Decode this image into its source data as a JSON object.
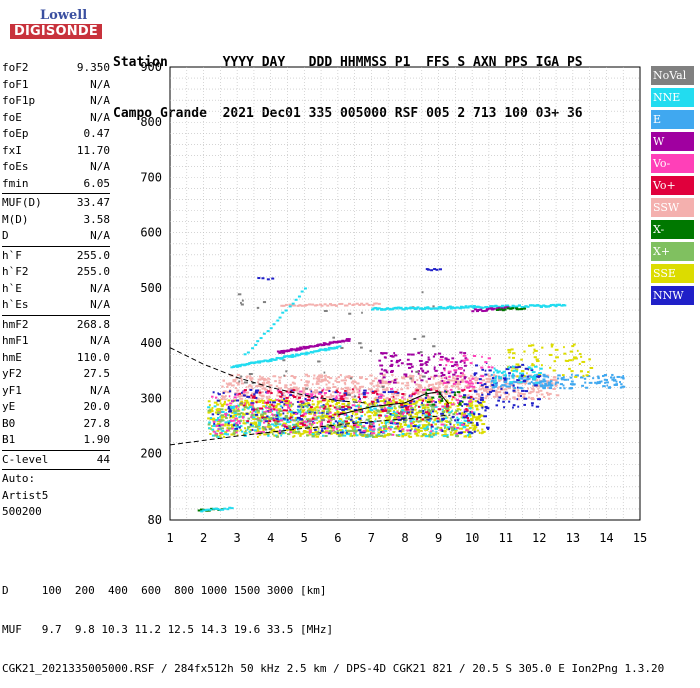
{
  "logo": {
    "line1": "Lowell",
    "line2": "DIGISONDE"
  },
  "header": {
    "line1": "Station       YYYY DAY   DDD HHMMSS P1  FFS S AXN PPS IGA PS",
    "line2": "Campo Grande  2021 Dec01 335 005000 RSF 005 2 713 100 03+ 36"
  },
  "params": [
    [
      {
        "label": "foF2",
        "value": "9.350"
      },
      {
        "label": "foF1",
        "value": "N/A"
      },
      {
        "label": "foF1p",
        "value": "N/A"
      },
      {
        "label": "foE",
        "value": "N/A"
      },
      {
        "label": "foEp",
        "value": "0.47"
      },
      {
        "label": "fxI",
        "value": "11.70"
      },
      {
        "label": "foEs",
        "value": "N/A"
      },
      {
        "label": "fmin",
        "value": "6.05"
      }
    ],
    [
      {
        "label": "MUF(D)",
        "value": "33.47"
      },
      {
        "label": "M(D)",
        "value": "3.58"
      },
      {
        "label": "D",
        "value": "N/A"
      }
    ],
    [
      {
        "label": "h`F",
        "value": "255.0"
      },
      {
        "label": "h`F2",
        "value": "255.0"
      },
      {
        "label": "h`E",
        "value": "N/A"
      },
      {
        "label": "h`Es",
        "value": "N/A"
      }
    ],
    [
      {
        "label": "hmF2",
        "value": "268.8"
      },
      {
        "label": "hmF1",
        "value": "N/A"
      },
      {
        "label": "hmE",
        "value": "110.0"
      },
      {
        "label": "yF2",
        "value": "27.5"
      },
      {
        "label": "yF1",
        "value": "N/A"
      },
      {
        "label": "yE",
        "value": "20.0"
      },
      {
        "label": "B0",
        "value": "27.8"
      },
      {
        "label": "B1",
        "value": "1.90"
      }
    ],
    [
      {
        "label": "C-level",
        "value": "44"
      }
    ],
    [
      {
        "label": "Auto:",
        "value": ""
      },
      {
        "label": "Artist5",
        "value": ""
      },
      {
        "label": "500200",
        "value": ""
      }
    ]
  ],
  "legend": [
    {
      "label": "NoVal",
      "color": "#808080"
    },
    {
      "label": "NNE",
      "color": "#22dcf0"
    },
    {
      "label": "E",
      "color": "#40a8f0"
    },
    {
      "label": "W",
      "color": "#a000a0"
    },
    {
      "label": "Vo-",
      "color": "#ff40b8"
    },
    {
      "label": "Vo+",
      "color": "#e0003c"
    },
    {
      "label": "SSW",
      "color": "#f4b0ae"
    },
    {
      "label": "X-",
      "color": "#007800"
    },
    {
      "label": "X+",
      "color": "#80c060"
    },
    {
      "label": "SSE",
      "color": "#dcdc00"
    },
    {
      "label": "NNW",
      "color": "#2020c8"
    }
  ],
  "chart_data": {
    "type": "scatter",
    "title": "",
    "xlabel": "",
    "ylabel": "",
    "xlim": [
      1,
      15
    ],
    "ylim": [
      80,
      900
    ],
    "x_ticks": [
      1,
      2,
      3,
      4,
      5,
      6,
      7,
      8,
      9,
      10,
      11,
      12,
      13,
      14,
      15
    ],
    "y_ticks": [
      80,
      200,
      300,
      400,
      500,
      600,
      700,
      800,
      900
    ],
    "grid": true,
    "legend_position": "right",
    "clusters": [
      {
        "series": "SSW",
        "f": [
          2.5,
          12.5
        ],
        "h": [
          300,
          345
        ],
        "n": 700
      },
      {
        "series": "SSE",
        "f": [
          2.1,
          10.3
        ],
        "h": [
          232,
          300
        ],
        "n": 900
      },
      {
        "series": "NNE",
        "f": [
          2.1,
          10.0
        ],
        "h": [
          232,
          290
        ],
        "n": 260
      },
      {
        "series": "NNW",
        "f": [
          2.2,
          10.5
        ],
        "h": [
          238,
          318
        ],
        "n": 260
      },
      {
        "series": "Vo-",
        "f": [
          2.2,
          10.0
        ],
        "h": [
          236,
          320
        ],
        "n": 220
      },
      {
        "series": "Vo+",
        "f": [
          3.0,
          10.0
        ],
        "h": [
          250,
          320
        ],
        "n": 140
      },
      {
        "series": "X+",
        "f": [
          2.1,
          9.5
        ],
        "h": [
          232,
          290
        ],
        "n": 180
      },
      {
        "series": "W",
        "f": [
          7.2,
          9.8
        ],
        "h": [
          330,
          385
        ],
        "n": 110
      },
      {
        "series": "E",
        "f": [
          10.5,
          14.5
        ],
        "h": [
          320,
          345
        ],
        "n": 160
      },
      {
        "series": "SSE",
        "f": [
          11.0,
          13.5
        ],
        "h": [
          340,
          400
        ],
        "n": 70
      },
      {
        "series": "NNW",
        "f": [
          10.0,
          12.0
        ],
        "h": [
          285,
          370
        ],
        "n": 70
      },
      {
        "series": "Vo-",
        "f": [
          9.0,
          10.6
        ],
        "h": [
          320,
          380
        ],
        "n": 40
      },
      {
        "series": "NoVal",
        "f": [
          3.0,
          9.0
        ],
        "h": [
          240,
          500
        ],
        "n": 50
      },
      {
        "series": "NNE",
        "f": [
          10.5,
          12.0
        ],
        "h": [
          330,
          360
        ],
        "n": 40
      },
      {
        "series": "X-",
        "f": [
          8.5,
          9.8
        ],
        "h": [
          290,
          320
        ],
        "n": 20
      }
    ],
    "traces": [
      {
        "series": "NNE",
        "f": [
          2.8,
          6.0
        ],
        "h": [
          358,
          395
        ],
        "n": 90
      },
      {
        "series": "W",
        "f": [
          4.2,
          6.3
        ],
        "h": [
          385,
          408
        ],
        "n": 70
      },
      {
        "series": "NNE",
        "f": [
          7.0,
          12.7
        ],
        "h": [
          464,
          470
        ],
        "n": 140
      },
      {
        "series": "SSW",
        "f": [
          4.3,
          7.2
        ],
        "h": [
          470,
          472
        ],
        "n": 40
      },
      {
        "series": "W",
        "f": [
          10.0,
          11.0
        ],
        "h": [
          461,
          465
        ],
        "n": 20
      },
      {
        "series": "X-",
        "f": [
          10.7,
          11.5
        ],
        "h": [
          462,
          466
        ],
        "n": 14
      },
      {
        "series": "NNW",
        "f": [
          8.6,
          9.0
        ],
        "h": [
          535,
          537
        ],
        "n": 6
      },
      {
        "series": "NNE",
        "f": [
          3.2,
          5.0
        ],
        "h": [
          380,
          500
        ],
        "n": 20
      },
      {
        "series": "NNW",
        "f": [
          3.6,
          4.0
        ],
        "h": [
          518,
          520
        ],
        "n": 4
      },
      {
        "series": "X-",
        "f": [
          1.8,
          2.5
        ],
        "h": [
          99,
          101
        ],
        "n": 10
      },
      {
        "series": "NNE",
        "f": [
          1.9,
          2.8
        ],
        "h": [
          99,
          103
        ],
        "n": 14
      }
    ],
    "profile_curves": [
      {
        "name": "upper",
        "f": [
          1.0,
          2.0,
          3.0,
          4.0,
          5.0,
          6.0,
          6.8
        ],
        "h": [
          392,
          362,
          338,
          320,
          306,
          296,
          292
        ]
      },
      {
        "name": "lower",
        "f": [
          1.0,
          3.0,
          5.0,
          7.0,
          9.0,
          9.35
        ],
        "h": [
          216,
          232,
          246,
          258,
          268,
          270
        ]
      }
    ],
    "trace_line": {
      "f": [
        6.0,
        7.0,
        8.0,
        8.6,
        9.0,
        9.3
      ],
      "h": [
        270,
        285,
        292,
        308,
        312,
        290
      ]
    }
  },
  "footer": {
    "line1": "D     100  200  400  600  800 1000 1500 3000 [km]",
    "line2": "MUF   9.7  9.8 10.3 11.2 12.5 14.3 19.6 33.5 [MHz]",
    "line3": "CGK21_2021335005000.RSF / 284fx512h 50 kHz 2.5 km / DPS-4D CGK21 821 / 20.5 S 305.0 E Ion2Png 1.3.20"
  }
}
